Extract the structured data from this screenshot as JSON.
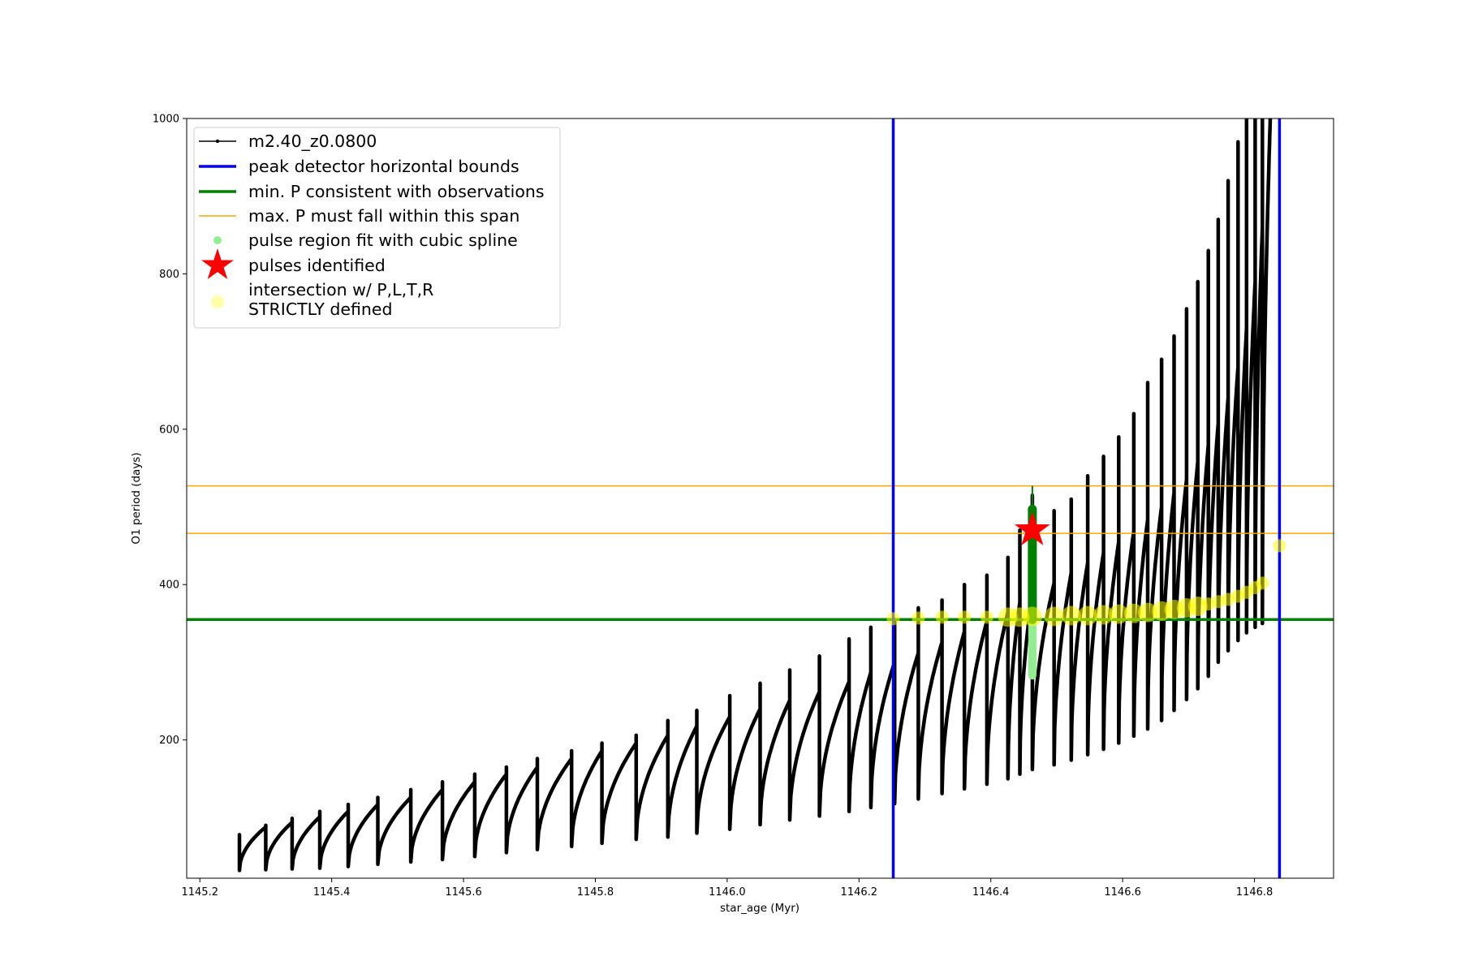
{
  "chart_data": {
    "type": "line",
    "xlabel": "star_age (Myr)",
    "ylabel": "O1 period (days)",
    "xlim": [
      1145.18,
      1146.92
    ],
    "ylim": [
      22,
      1000
    ],
    "x_ticks": [
      1145.2,
      1145.4,
      1145.6,
      1145.8,
      1146.0,
      1146.2,
      1146.4,
      1146.6,
      1146.8
    ],
    "x_tick_labels": [
      "1145.2",
      "1145.4",
      "1145.6",
      "1145.8",
      "1146.0",
      "1146.2",
      "1146.4",
      "1146.6",
      "1146.8"
    ],
    "y_ticks": [
      200,
      400,
      600,
      800,
      1000
    ],
    "y_tick_labels": [
      "200",
      "400",
      "600",
      "800",
      "1000"
    ],
    "grid": false,
    "legend_placement": "upper-left",
    "legend": [
      {
        "label": "m2.40_z0.0800",
        "marker": "line-dot",
        "color": "#000000"
      },
      {
        "label": "peak detector horizontal bounds",
        "marker": "line",
        "color": "#0000ff"
      },
      {
        "label": "min. P consistent with observations",
        "marker": "line",
        "color": "#008000"
      },
      {
        "label": "max. P must fall within this span",
        "marker": "line",
        "color": "#ffa500"
      },
      {
        "label": "pulse region fit with cubic spline",
        "marker": "dot",
        "color": "#90ee90"
      },
      {
        "label": "pulses identified",
        "marker": "star",
        "color": "#ff0000"
      },
      {
        "label": "intersection w/ P,L,T,R\nSTRICTLY defined",
        "marker": "dot",
        "color": "#ffffaa"
      }
    ],
    "series": [
      {
        "name": "m2.40_z0.0800",
        "color": "#000000",
        "pulses": [
          {
            "start": 1145.26,
            "min": 32,
            "max": 88,
            "spike": 78
          },
          {
            "start": 1145.3,
            "min": 33,
            "max": 94,
            "spike": 90
          },
          {
            "start": 1145.34,
            "min": 34,
            "max": 101,
            "spike": 99
          },
          {
            "start": 1145.382,
            "min": 35,
            "max": 108,
            "spike": 108
          },
          {
            "start": 1145.425,
            "min": 37,
            "max": 117,
            "spike": 117
          },
          {
            "start": 1145.47,
            "min": 40,
            "max": 126,
            "spike": 126
          },
          {
            "start": 1145.52,
            "min": 43,
            "max": 136,
            "spike": 136
          },
          {
            "start": 1145.568,
            "min": 46,
            "max": 146,
            "spike": 146
          },
          {
            "start": 1145.617,
            "min": 50,
            "max": 156,
            "spike": 156
          },
          {
            "start": 1145.665,
            "min": 55,
            "max": 165,
            "spike": 165
          },
          {
            "start": 1145.712,
            "min": 59,
            "max": 176,
            "spike": 176
          },
          {
            "start": 1145.764,
            "min": 63,
            "max": 186,
            "spike": 186
          },
          {
            "start": 1145.81,
            "min": 67,
            "max": 196,
            "spike": 196
          },
          {
            "start": 1145.862,
            "min": 72,
            "max": 206,
            "spike": 206
          },
          {
            "start": 1145.91,
            "min": 75,
            "max": 218,
            "spike": 225
          },
          {
            "start": 1145.954,
            "min": 80,
            "max": 230,
            "spike": 238
          },
          {
            "start": 1146.004,
            "min": 85,
            "max": 240,
            "spike": 257
          },
          {
            "start": 1146.05,
            "min": 91,
            "max": 251,
            "spike": 273
          },
          {
            "start": 1146.095,
            "min": 97,
            "max": 262,
            "spike": 290
          },
          {
            "start": 1146.14,
            "min": 102,
            "max": 275,
            "spike": 308
          },
          {
            "start": 1146.185,
            "min": 108,
            "max": 287,
            "spike": 330
          },
          {
            "start": 1146.218,
            "min": 113,
            "max": 300,
            "spike": 345
          },
          {
            "start": 1146.254,
            "min": 118,
            "max": 312,
            "spike": 355
          },
          {
            "start": 1146.29,
            "min": 124,
            "max": 326,
            "spike": 370
          },
          {
            "start": 1146.326,
            "min": 131,
            "max": 340,
            "spike": 380
          },
          {
            "start": 1146.36,
            "min": 137,
            "max": 353,
            "spike": 400
          },
          {
            "start": 1146.394,
            "min": 143,
            "max": 365,
            "spike": 412
          },
          {
            "start": 1146.426,
            "min": 150,
            "max": 377,
            "spike": 435
          },
          {
            "start": 1146.444,
            "min": 156,
            "max": 390,
            "spike": 470
          },
          {
            "start": 1146.463,
            "min": 162,
            "max": 402,
            "spike": 515
          },
          {
            "start": 1146.496,
            "min": 168,
            "max": 415,
            "spike": 495
          },
          {
            "start": 1146.522,
            "min": 174,
            "max": 428,
            "spike": 510
          },
          {
            "start": 1146.547,
            "min": 181,
            "max": 441,
            "spike": 540
          },
          {
            "start": 1146.571,
            "min": 188,
            "max": 455,
            "spike": 565
          },
          {
            "start": 1146.594,
            "min": 196,
            "max": 469,
            "spike": 590
          },
          {
            "start": 1146.617,
            "min": 205,
            "max": 484,
            "spike": 620
          },
          {
            "start": 1146.638,
            "min": 214,
            "max": 500,
            "spike": 660
          },
          {
            "start": 1146.659,
            "min": 225,
            "max": 518,
            "spike": 690
          },
          {
            "start": 1146.678,
            "min": 238,
            "max": 536,
            "spike": 720
          },
          {
            "start": 1146.697,
            "min": 252,
            "max": 558,
            "spike": 755
          },
          {
            "start": 1146.714,
            "min": 266,
            "max": 580,
            "spike": 790
          },
          {
            "start": 1146.73,
            "min": 282,
            "max": 608,
            "spike": 830
          },
          {
            "start": 1146.745,
            "min": 300,
            "max": 640,
            "spike": 870
          },
          {
            "start": 1146.76,
            "min": 315,
            "max": 680,
            "spike": 920
          },
          {
            "start": 1146.775,
            "min": 328,
            "max": 730,
            "spike": 970
          },
          {
            "start": 1146.788,
            "min": 338,
            "max": 790,
            "spike": 1000
          },
          {
            "start": 1146.801,
            "min": 345,
            "max": 860,
            "spike": 1000
          },
          {
            "start": 1146.812,
            "min": 350,
            "max": 1000,
            "spike": 1000
          }
        ]
      }
    ],
    "vertical_lines": [
      {
        "x": 1146.252,
        "color": "#0000ff"
      },
      {
        "x": 1146.838,
        "color": "#0000ff"
      }
    ],
    "horizontal_lines": [
      {
        "y": 355,
        "color": "#008000"
      },
      {
        "y": 527,
        "color": "#ffa500"
      },
      {
        "y": 466,
        "color": "#ffa500"
      }
    ],
    "spline_region": {
      "x": 1146.463,
      "y_min": 283,
      "y_max": 490,
      "color": "#90ee90"
    },
    "identified_segment": {
      "x": 1146.463,
      "y_min": 355,
      "y_max": 497,
      "color": "#008000"
    },
    "pulses_identified": [
      {
        "x": 1146.463,
        "y": 470
      }
    ],
    "intersections": [
      {
        "x": 1146.252,
        "y": 356
      },
      {
        "x": 1146.29,
        "y": 357
      },
      {
        "x": 1146.326,
        "y": 358
      },
      {
        "x": 1146.36,
        "y": 358
      },
      {
        "x": 1146.394,
        "y": 358
      },
      {
        "x": 1146.426,
        "y": 358
      },
      {
        "x": 1146.444,
        "y": 358
      },
      {
        "x": 1146.463,
        "y": 359
      },
      {
        "x": 1146.496,
        "y": 359
      },
      {
        "x": 1146.522,
        "y": 360
      },
      {
        "x": 1146.547,
        "y": 360
      },
      {
        "x": 1146.571,
        "y": 361
      },
      {
        "x": 1146.594,
        "y": 362
      },
      {
        "x": 1146.617,
        "y": 363
      },
      {
        "x": 1146.638,
        "y": 364
      },
      {
        "x": 1146.659,
        "y": 366
      },
      {
        "x": 1146.678,
        "y": 368
      },
      {
        "x": 1146.697,
        "y": 370
      },
      {
        "x": 1146.714,
        "y": 372
      },
      {
        "x": 1146.73,
        "y": 375
      },
      {
        "x": 1146.745,
        "y": 378
      },
      {
        "x": 1146.76,
        "y": 381
      },
      {
        "x": 1146.775,
        "y": 385
      },
      {
        "x": 1146.788,
        "y": 390
      },
      {
        "x": 1146.801,
        "y": 396
      },
      {
        "x": 1146.812,
        "y": 402
      },
      {
        "x": 1146.838,
        "y": 450
      }
    ]
  }
}
